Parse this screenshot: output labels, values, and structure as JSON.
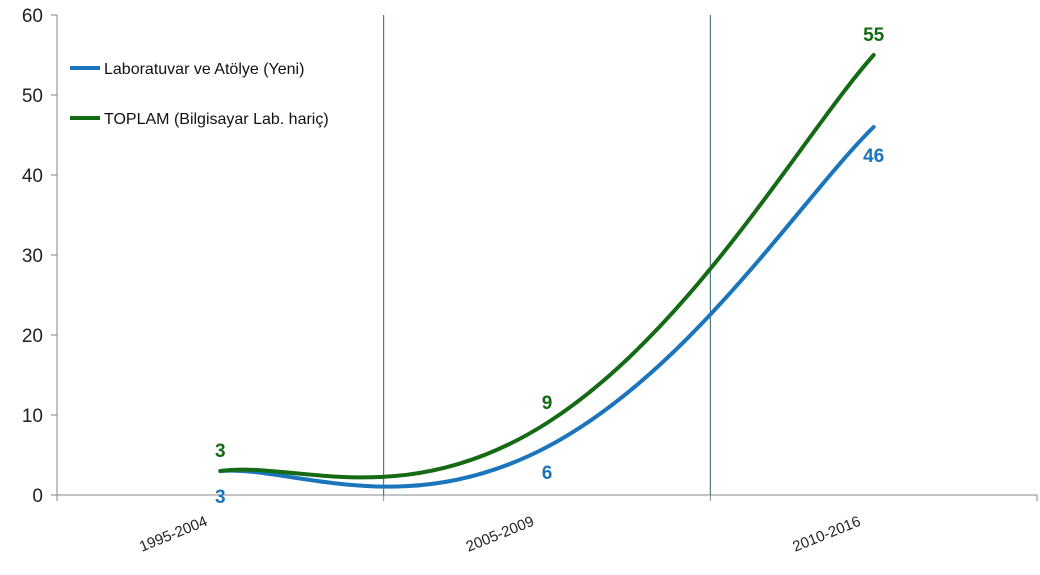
{
  "chart_data": {
    "type": "line",
    "categories": [
      "1995-2004",
      "2005-2009",
      "2010-2016"
    ],
    "ylim": [
      0,
      60
    ],
    "yticks": [
      0,
      10,
      20,
      30,
      40,
      50,
      60
    ],
    "grid": false,
    "smooth": true,
    "legend_position": "top-left",
    "series": [
      {
        "name": "Laboratuvar ve Atölye (Yeni)",
        "values": [
          3,
          6,
          46
        ],
        "color": "#1a75bc",
        "labels": [
          "3",
          "6",
          "46"
        ]
      },
      {
        "name": "TOPLAM (Bilgisayar Lab. hariç)",
        "values": [
          3,
          9,
          55
        ],
        "color": "#146b14",
        "labels": [
          "3",
          "9",
          "55"
        ]
      }
    ]
  }
}
